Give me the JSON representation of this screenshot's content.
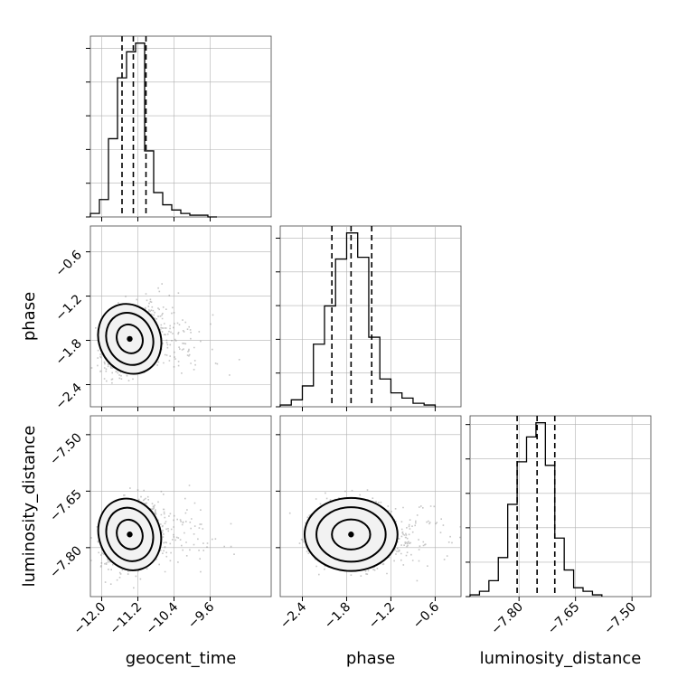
{
  "chart_data": {
    "type": "corner",
    "parameters": [
      "geocent_time",
      "phase",
      "luminosity_distance"
    ],
    "axis_labels": {
      "x": [
        "geocent_time",
        "phase",
        "luminosity_distance"
      ],
      "y": [
        "",
        "phase",
        "luminosity_distance"
      ]
    },
    "ranges": {
      "geocent_time": [
        -12.25,
        -8.25
      ],
      "phase": [
        -2.7,
        -0.25
      ],
      "luminosity_distance": [
        -7.93,
        -7.45
      ]
    },
    "ticks": {
      "geocent_time": [
        {
          "value": -12.0,
          "label": "−12.0"
        },
        {
          "value": -11.2,
          "label": "−11.2"
        },
        {
          "value": -10.4,
          "label": "−10.4"
        },
        {
          "value": -9.6,
          "label": "−9.6"
        }
      ],
      "phase": [
        {
          "value": -2.4,
          "label": "−2.4"
        },
        {
          "value": -1.8,
          "label": "−1.8"
        },
        {
          "value": -1.2,
          "label": "−1.2"
        },
        {
          "value": -0.6,
          "label": "−0.6"
        }
      ],
      "luminosity_distance": [
        {
          "value": -7.8,
          "label": "−7.80"
        },
        {
          "value": -7.65,
          "label": "−7.65"
        },
        {
          "value": -7.5,
          "label": "−7.50"
        }
      ]
    },
    "histograms": {
      "geocent_time": {
        "bin_edges": [
          -12.25,
          -12.05,
          -11.85,
          -11.65,
          -11.45,
          -11.25,
          -11.05,
          -10.85,
          -10.65,
          -10.45,
          -10.25,
          -10.05,
          -9.85,
          -9.65,
          -9.45
        ],
        "counts": [
          2,
          10,
          45,
          80,
          95,
          100,
          38,
          14,
          7,
          4,
          2,
          1,
          1,
          0
        ],
        "quantiles": [
          -11.55,
          -11.3,
          -11.02
        ]
      },
      "phase": {
        "bin_edges": [
          -2.7,
          -2.55,
          -2.4,
          -2.25,
          -2.1,
          -1.95,
          -1.8,
          -1.65,
          -1.5,
          -1.35,
          -1.2,
          -1.05,
          -0.9,
          -0.75,
          -0.6
        ],
        "counts": [
          1,
          4,
          12,
          36,
          58,
          85,
          100,
          86,
          40,
          16,
          8,
          5,
          2,
          1
        ],
        "quantiles": [
          -2.0,
          -1.74,
          -1.46
        ]
      },
      "luminosity_distance": {
        "bin_edges": [
          -7.93,
          -7.905,
          -7.88,
          -7.855,
          -7.83,
          -7.805,
          -7.78,
          -7.755,
          -7.73,
          -7.705,
          -7.68,
          -7.655,
          -7.63,
          -7.605,
          -7.58
        ],
        "counts": [
          1,
          3,
          9,
          22,
          52,
          76,
          90,
          98,
          74,
          33,
          15,
          5,
          3,
          1
        ],
        "quantiles": [
          -7.805,
          -7.752,
          -7.705
        ]
      }
    },
    "scatter_2d": [
      {
        "x": "geocent_time",
        "y": "phase",
        "center": [
          -11.38,
          -1.78
        ],
        "spread": [
          0.28,
          0.2
        ],
        "correlation": 0.45,
        "contour_levels": [
          0.4,
          1.05,
          1.9,
          2.55
        ]
      },
      {
        "x": "geocent_time",
        "y": "luminosity_distance",
        "center": [
          -11.38,
          -7.765
        ],
        "spread": [
          0.28,
          0.04
        ],
        "correlation": 0.35,
        "contour_levels": [
          0.4,
          1.05,
          1.9,
          2.55
        ]
      },
      {
        "x": "phase",
        "y": "luminosity_distance",
        "center": [
          -1.74,
          -7.765
        ],
        "spread": [
          0.26,
          0.04
        ],
        "correlation": 0.0,
        "contour_levels": [
          0.4,
          1.05,
          1.9,
          2.55
        ]
      }
    ],
    "grid": true,
    "colors": {
      "points": "#808080",
      "density_low": "#f5f5f5",
      "density_high": "#111111",
      "lines": "#000000"
    }
  }
}
